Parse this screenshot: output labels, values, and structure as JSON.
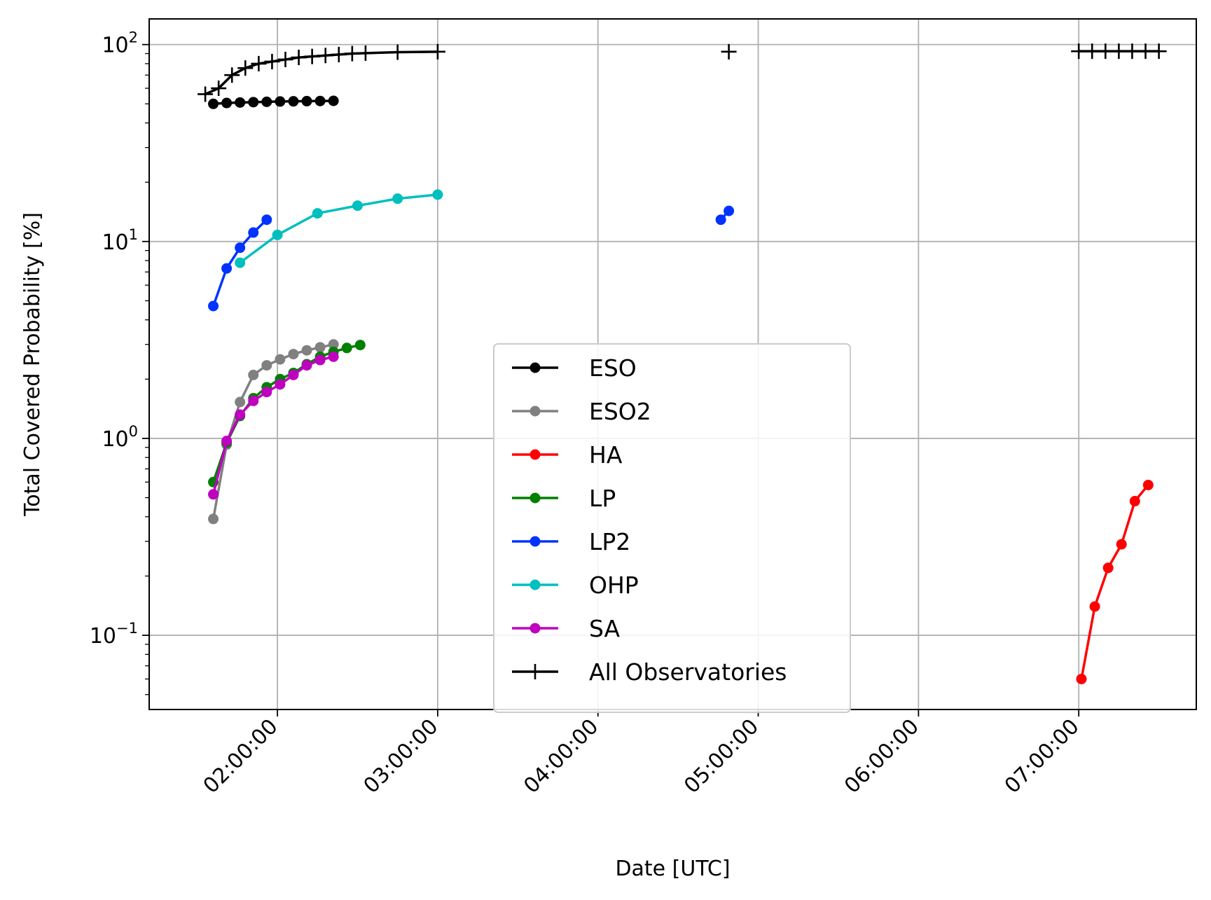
{
  "chart_data": {
    "type": "line",
    "xlabel": "Date [UTC]",
    "ylabel": "Total Covered Probability [%]",
    "x_unit": "time of day (HH:MM:SS, UTC)",
    "y_scale": "log",
    "xlim": [
      "01:12:00",
      "07:44:00"
    ],
    "ylim": [
      0.042,
      135
    ],
    "grid": true,
    "legend_position": "lower center",
    "x_ticks": [
      "02:00:00",
      "03:00:00",
      "04:00:00",
      "05:00:00",
      "06:00:00",
      "07:00:00"
    ],
    "y_ticks": [
      {
        "value": 0.1,
        "base": "10",
        "exp": "−1"
      },
      {
        "value": 1,
        "base": "10",
        "exp": "0"
      },
      {
        "value": 10,
        "base": "10",
        "exp": "1"
      },
      {
        "value": 100,
        "base": "10",
        "exp": "2"
      }
    ],
    "series": [
      {
        "name": "ESO",
        "color": "#000000",
        "marker": "dot",
        "points": [
          [
            "01:36:00",
            50
          ],
          [
            "01:41:00",
            50.5
          ],
          [
            "01:46:00",
            50.8
          ],
          [
            "01:51:00",
            51
          ],
          [
            "01:56:00",
            51.2
          ],
          [
            "02:01:00",
            51.4
          ],
          [
            "02:06:00",
            51.5
          ],
          [
            "02:11:00",
            51.6
          ],
          [
            "02:16:00",
            51.7
          ],
          [
            "02:21:00",
            51.8
          ]
        ]
      },
      {
        "name": "ESO2",
        "color": "#808080",
        "marker": "dot",
        "points": [
          [
            "01:36:00",
            0.39
          ],
          [
            "01:41:00",
            0.93
          ],
          [
            "01:46:00",
            1.53
          ],
          [
            "01:51:00",
            2.1
          ],
          [
            "01:56:00",
            2.35
          ],
          [
            "02:01:00",
            2.52
          ],
          [
            "02:06:00",
            2.68
          ],
          [
            "02:11:00",
            2.8
          ],
          [
            "02:16:00",
            2.9
          ],
          [
            "02:21:00",
            3.0
          ]
        ]
      },
      {
        "name": "HA",
        "color": "#ff0000",
        "marker": "dot",
        "points": [
          [
            "07:01:00",
            0.06
          ],
          [
            "07:06:00",
            0.14
          ],
          [
            "07:11:00",
            0.22
          ],
          [
            "07:16:00",
            0.29
          ],
          [
            "07:21:00",
            0.48
          ],
          [
            "07:26:00",
            0.58
          ]
        ]
      },
      {
        "name": "LP",
        "color": "#008000",
        "marker": "dot",
        "points": [
          [
            "01:36:00",
            0.6
          ],
          [
            "01:41:00",
            0.95
          ],
          [
            "01:46:00",
            1.3
          ],
          [
            "01:51:00",
            1.6
          ],
          [
            "01:56:00",
            1.82
          ],
          [
            "02:01:00",
            2.0
          ],
          [
            "02:06:00",
            2.15
          ],
          [
            "02:11:00",
            2.38
          ],
          [
            "02:16:00",
            2.6
          ],
          [
            "02:21:00",
            2.75
          ],
          [
            "02:26:00",
            2.88
          ],
          [
            "02:31:00",
            2.98
          ]
        ]
      },
      {
        "name": "LP2",
        "color": "#0033ff",
        "marker": "dot",
        "segments": [
          [
            [
              "01:36:00",
              4.7
            ],
            [
              "01:41:00",
              7.3
            ],
            [
              "01:46:00",
              9.3
            ],
            [
              "01:51:00",
              11.1
            ],
            [
              "01:56:00",
              12.9
            ]
          ],
          [
            [
              "04:46:00",
              12.9
            ],
            [
              "04:49:00",
              14.3
            ]
          ]
        ]
      },
      {
        "name": "OHP",
        "color": "#00bfbf",
        "marker": "dot",
        "points": [
          [
            "01:46:00",
            7.8
          ],
          [
            "02:00:00",
            10.8
          ],
          [
            "02:15:00",
            13.9
          ],
          [
            "02:30:00",
            15.2
          ],
          [
            "02:45:00",
            16.5
          ],
          [
            "03:00:00",
            17.3
          ]
        ]
      },
      {
        "name": "SA",
        "color": "#bf00bf",
        "marker": "dot",
        "points": [
          [
            "01:36:00",
            0.52
          ],
          [
            "01:41:00",
            0.97
          ],
          [
            "01:46:00",
            1.32
          ],
          [
            "01:51:00",
            1.55
          ],
          [
            "01:56:00",
            1.72
          ],
          [
            "02:01:00",
            1.88
          ],
          [
            "02:06:00",
            2.1
          ],
          [
            "02:11:00",
            2.35
          ],
          [
            "02:16:00",
            2.5
          ],
          [
            "02:21:00",
            2.6
          ]
        ]
      },
      {
        "name": "All Observatories",
        "color": "#000000",
        "marker": "plus",
        "segments": [
          [
            [
              "01:33:00",
              56
            ],
            [
              "01:38:00",
              60
            ],
            [
              "01:43:00",
              70
            ],
            [
              "01:48:00",
              76
            ],
            [
              "01:53:00",
              80
            ],
            [
              "01:58:00",
              82
            ],
            [
              "02:03:00",
              84
            ],
            [
              "02:08:00",
              86
            ],
            [
              "02:13:00",
              87
            ],
            [
              "02:18:00",
              88
            ],
            [
              "02:23:00",
              89
            ],
            [
              "02:28:00",
              90
            ],
            [
              "02:33:00",
              90.5
            ],
            [
              "02:45:00",
              91.5
            ],
            [
              "03:00:00",
              92
            ]
          ],
          [
            [
              "04:49:00",
              92
            ]
          ],
          [
            [
              "07:00:00",
              92.5
            ],
            [
              "07:05:00",
              92.5
            ],
            [
              "07:10:00",
              92.5
            ],
            [
              "07:15:00",
              92.5
            ],
            [
              "07:20:00",
              92.5
            ],
            [
              "07:25:00",
              92.5
            ],
            [
              "07:30:00",
              92.5
            ]
          ]
        ]
      }
    ]
  }
}
